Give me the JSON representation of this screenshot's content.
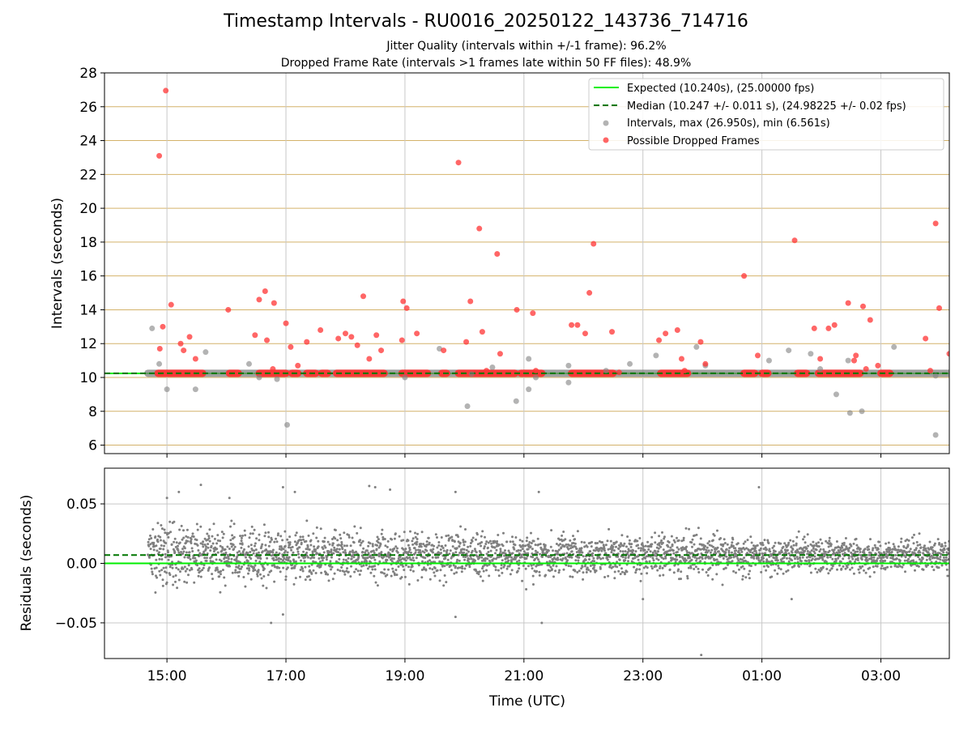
{
  "figure": {
    "title": "Timestamp Intervals - RU0016_20250122_143736_714716",
    "subtitle_1": "Jitter Quality (intervals within +/-1 frame): 96.2%",
    "subtitle_2": "Dropped Frame Rate (intervals >1 frames late within 50 FF files): 48.9%"
  },
  "colors": {
    "expected": "#00ee00",
    "median": "#007700",
    "intervals": "#808080",
    "dropped": "#ff3333",
    "hgrid_top": "#d4b26a",
    "grid": "#c8c8c8"
  },
  "chart_data": [
    {
      "type": "scatter",
      "panel": "intervals",
      "xlabel": "",
      "ylabel": "Intervals (seconds)",
      "x_unit": "hours_utc",
      "xlim": [
        13.95,
        28.15
      ],
      "ylim": [
        5.5,
        28
      ],
      "yticks": [
        6,
        8,
        10,
        12,
        14,
        16,
        18,
        20,
        22,
        24,
        26,
        28
      ],
      "xticks": [
        15,
        17,
        19,
        21,
        23,
        25,
        27
      ],
      "xtick_labels": [
        "15:00",
        "17:00",
        "19:00",
        "21:00",
        "23:00",
        "01:00",
        "03:00"
      ],
      "grid": "on",
      "legend_position": "top-right",
      "legend": [
        "Expected (10.240s), (25.00000 fps)",
        "Median (10.247 +/- 0.011 s), (24.98225 +/- 0.02 fps)",
        "Intervals, max (26.950s), min (6.561s)",
        "Possible Dropped Frames"
      ],
      "expected": 10.24,
      "median": 10.247,
      "baseline_start": 14.68,
      "dropped_baseline_segments": [
        [
          14.85,
          15.6
        ],
        [
          16.05,
          16.2
        ],
        [
          16.55,
          17.0
        ],
        [
          17.1,
          17.2
        ],
        [
          17.35,
          17.5
        ],
        [
          17.6,
          17.7
        ],
        [
          17.85,
          18.65
        ],
        [
          18.95,
          19.38
        ],
        [
          19.62,
          19.7
        ],
        [
          19.9,
          20.85
        ],
        [
          20.95,
          21.3
        ],
        [
          21.8,
          22.5
        ],
        [
          23.3,
          23.75
        ],
        [
          24.7,
          24.88
        ],
        [
          25.0,
          25.1
        ],
        [
          25.6,
          25.75
        ],
        [
          25.95,
          26.65
        ],
        [
          27.0,
          27.15
        ]
      ],
      "intervals": [
        [
          14.75,
          12.9
        ],
        [
          14.87,
          10.8
        ],
        [
          15.0,
          9.3
        ],
        [
          15.48,
          9.3
        ],
        [
          15.65,
          11.5
        ],
        [
          16.38,
          10.8
        ],
        [
          16.55,
          10.0
        ],
        [
          16.85,
          9.9
        ],
        [
          17.02,
          7.2
        ],
        [
          19.0,
          10.0
        ],
        [
          19.58,
          11.7
        ],
        [
          20.05,
          8.3
        ],
        [
          20.12,
          10.2
        ],
        [
          20.47,
          10.6
        ],
        [
          20.87,
          8.6
        ],
        [
          21.08,
          9.3
        ],
        [
          21.08,
          11.1
        ],
        [
          21.2,
          10.0
        ],
        [
          21.75,
          10.7
        ],
        [
          21.75,
          9.7
        ],
        [
          22.38,
          10.4
        ],
        [
          22.78,
          10.8
        ],
        [
          23.22,
          11.3
        ],
        [
          23.9,
          11.8
        ],
        [
          24.05,
          10.7
        ],
        [
          25.12,
          11.0
        ],
        [
          25.45,
          11.6
        ],
        [
          25.82,
          11.4
        ],
        [
          25.98,
          10.5
        ],
        [
          26.25,
          9.0
        ],
        [
          26.45,
          11.0
        ],
        [
          26.48,
          7.9
        ],
        [
          26.68,
          8.0
        ],
        [
          27.22,
          11.8
        ],
        [
          27.92,
          6.6
        ],
        [
          27.92,
          10.1
        ]
      ],
      "dropped_frames": [
        [
          14.87,
          23.1
        ],
        [
          14.98,
          26.95
        ],
        [
          14.93,
          13.0
        ],
        [
          14.88,
          11.7
        ],
        [
          15.07,
          14.3
        ],
        [
          15.23,
          12.0
        ],
        [
          15.28,
          11.6
        ],
        [
          15.38,
          12.4
        ],
        [
          15.48,
          11.1
        ],
        [
          16.03,
          14.0
        ],
        [
          16.48,
          12.5
        ],
        [
          16.55,
          14.6
        ],
        [
          16.65,
          15.1
        ],
        [
          16.68,
          12.2
        ],
        [
          16.8,
          14.4
        ],
        [
          16.78,
          10.5
        ],
        [
          17.0,
          13.2
        ],
        [
          17.08,
          11.8
        ],
        [
          17.2,
          10.7
        ],
        [
          17.35,
          12.1
        ],
        [
          17.58,
          12.8
        ],
        [
          17.88,
          12.3
        ],
        [
          18.0,
          12.6
        ],
        [
          18.1,
          12.4
        ],
        [
          18.2,
          11.9
        ],
        [
          18.3,
          14.8
        ],
        [
          18.4,
          11.1
        ],
        [
          18.52,
          12.5
        ],
        [
          18.6,
          11.6
        ],
        [
          18.97,
          14.5
        ],
        [
          19.03,
          14.1
        ],
        [
          18.95,
          12.2
        ],
        [
          19.2,
          12.6
        ],
        [
          19.65,
          11.6
        ],
        [
          19.9,
          22.7
        ],
        [
          20.03,
          12.1
        ],
        [
          20.1,
          14.5
        ],
        [
          20.25,
          18.8
        ],
        [
          20.3,
          12.7
        ],
        [
          20.37,
          10.4
        ],
        [
          20.55,
          17.3
        ],
        [
          20.6,
          11.4
        ],
        [
          20.88,
          14.0
        ],
        [
          21.15,
          13.8
        ],
        [
          21.2,
          10.4
        ],
        [
          21.8,
          13.1
        ],
        [
          21.9,
          13.1
        ],
        [
          22.03,
          12.6
        ],
        [
          22.1,
          15.0
        ],
        [
          22.17,
          17.9
        ],
        [
          22.48,
          12.7
        ],
        [
          22.6,
          10.3
        ],
        [
          23.27,
          12.2
        ],
        [
          23.38,
          12.6
        ],
        [
          23.58,
          12.8
        ],
        [
          23.65,
          11.1
        ],
        [
          23.7,
          10.4
        ],
        [
          23.97,
          12.1
        ],
        [
          24.05,
          10.8
        ],
        [
          24.7,
          16.0
        ],
        [
          24.93,
          11.3
        ],
        [
          25.55,
          18.1
        ],
        [
          25.88,
          12.9
        ],
        [
          25.98,
          11.1
        ],
        [
          26.12,
          12.9
        ],
        [
          26.22,
          13.1
        ],
        [
          26.45,
          14.4
        ],
        [
          26.55,
          11.0
        ],
        [
          26.58,
          11.3
        ],
        [
          26.7,
          14.2
        ],
        [
          26.75,
          10.5
        ],
        [
          26.82,
          13.4
        ],
        [
          26.95,
          10.7
        ],
        [
          27.75,
          12.3
        ],
        [
          27.83,
          10.4
        ],
        [
          27.92,
          19.1
        ],
        [
          27.98,
          14.1
        ],
        [
          28.15,
          11.4
        ]
      ]
    },
    {
      "type": "scatter",
      "panel": "residuals",
      "xlabel": "Time (UTC)",
      "ylabel": "Residuals (seconds)",
      "x_unit": "hours_utc",
      "xlim": [
        13.95,
        28.15
      ],
      "ylim": [
        -0.08,
        0.08
      ],
      "yticks": [
        0.05,
        0.0,
        -0.05
      ],
      "ytick_labels": [
        "0.05",
        "0.00",
        "−0.05"
      ],
      "xticks": [
        15,
        17,
        19,
        21,
        23,
        25,
        27
      ],
      "xtick_labels": [
        "15:00",
        "17:00",
        "19:00",
        "21:00",
        "23:00",
        "01:00",
        "03:00"
      ],
      "grid": "on",
      "expected": 0.0,
      "median": 0.007,
      "residual_center": 0.007,
      "residual_spread_start": 0.016,
      "residual_spread_end": 0.009,
      "outliers": [
        [
          15.0,
          0.055
        ],
        [
          15.2,
          0.06
        ],
        [
          15.57,
          0.066
        ],
        [
          16.05,
          0.055
        ],
        [
          16.95,
          0.064
        ],
        [
          17.15,
          0.06
        ],
        [
          18.4,
          0.065
        ],
        [
          18.5,
          0.064
        ],
        [
          18.75,
          0.062
        ],
        [
          19.85,
          0.06
        ],
        [
          21.25,
          0.06
        ],
        [
          24.95,
          0.064
        ],
        [
          16.75,
          -0.05
        ],
        [
          16.95,
          -0.043
        ],
        [
          19.85,
          -0.045
        ],
        [
          21.3,
          -0.05
        ],
        [
          23.98,
          -0.077
        ],
        [
          23.0,
          -0.03
        ],
        [
          25.5,
          -0.03
        ]
      ]
    }
  ]
}
